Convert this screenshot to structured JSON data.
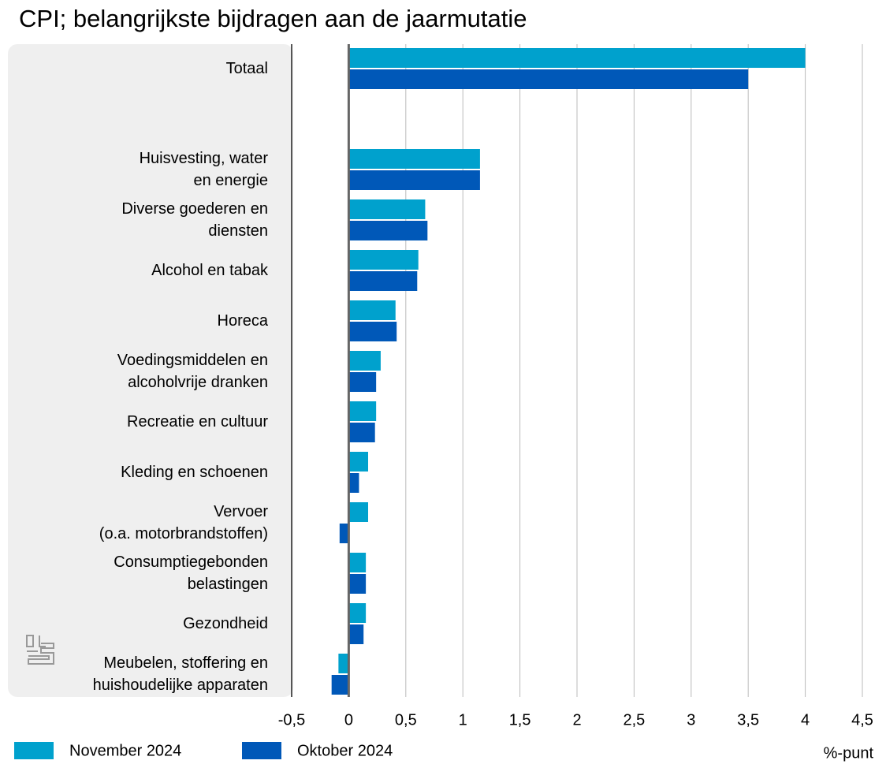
{
  "chart_data": {
    "type": "hbar",
    "title": "CPI; belangrijkste bijdragen aan de jaarmutatie",
    "categories": [
      "Totaal",
      null,
      "Huisvesting, water\nen energie",
      "Diverse goederen en\ndiensten",
      "Alcohol en tabak",
      "Horeca",
      "Voedingsmiddelen en\nalcoholvrije dranken",
      "Recreatie en cultuur",
      "Kleding en schoenen",
      "Vervoer\n(o.a. motorbrandstoffen)",
      "Consumptiegebonden\nbelastingen",
      "Gezondheid",
      "Meubelen, stoffering en\nhuishoudelijke apparaten"
    ],
    "series": [
      {
        "name": "November 2024",
        "color": "#00a1cd",
        "values": [
          4.0,
          null,
          1.15,
          0.67,
          0.61,
          0.41,
          0.28,
          0.24,
          0.17,
          0.17,
          0.15,
          0.15,
          -0.09
        ]
      },
      {
        "name": "Oktober 2024",
        "color": "#0058b8",
        "values": [
          3.5,
          null,
          1.15,
          0.69,
          0.6,
          0.42,
          0.24,
          0.23,
          0.09,
          -0.08,
          0.15,
          0.13,
          -0.15
        ]
      }
    ],
    "xlim": [
      -0.5,
      4.5
    ],
    "xticks": [
      {
        "value": -0.5,
        "label": "-0,5"
      },
      0,
      {
        "value": 0.5,
        "label": "0,5"
      },
      1,
      {
        "value": 1.5,
        "label": "1,5"
      },
      2,
      {
        "value": 2.5,
        "label": "2,5"
      },
      3,
      {
        "value": 3.5,
        "label": "3,5"
      },
      4,
      {
        "value": 4.5,
        "label": "4,5"
      }
    ],
    "xlabel": "%-punt",
    "grid": true
  }
}
